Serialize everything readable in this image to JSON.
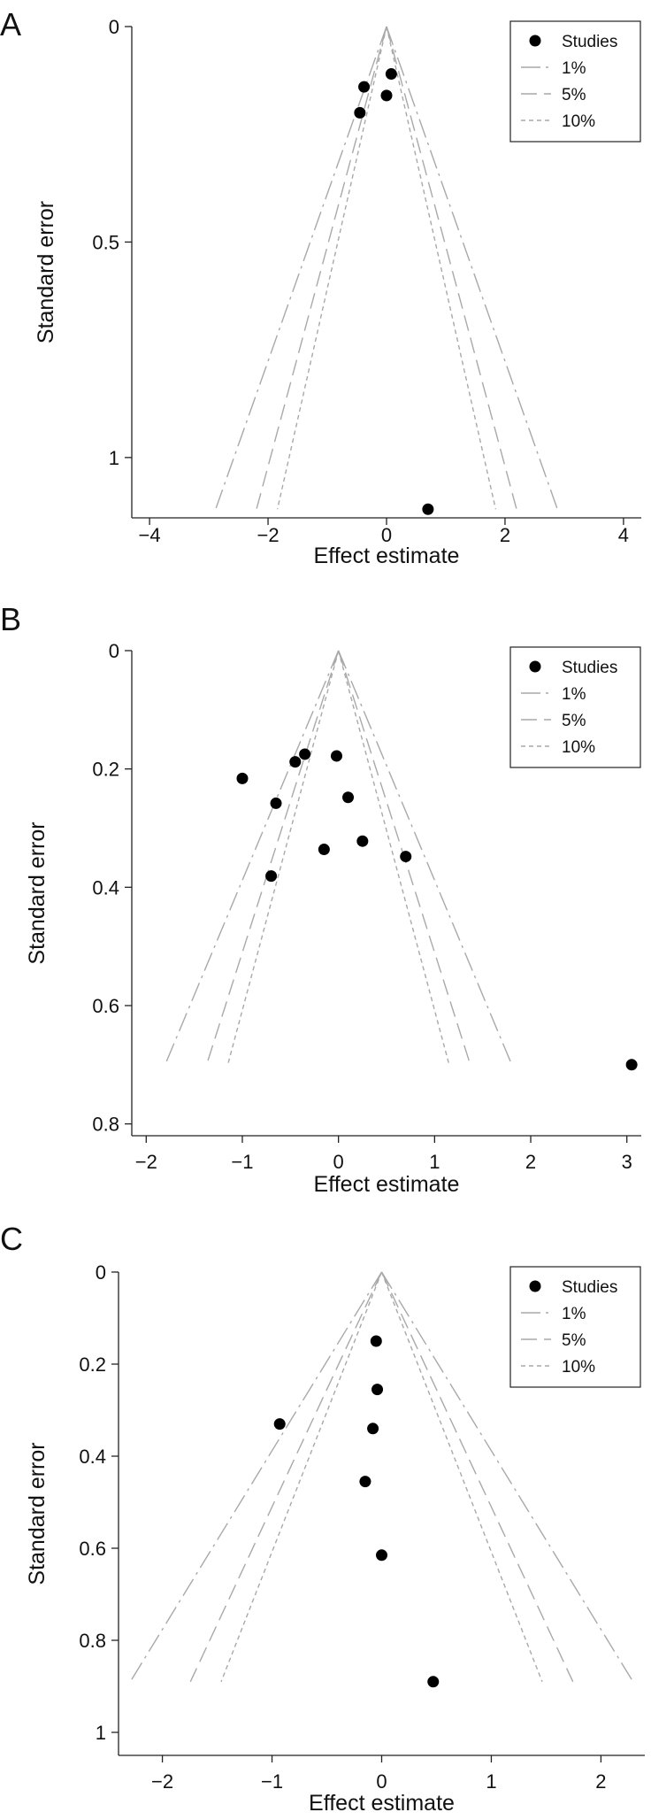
{
  "chart_data": [
    {
      "type": "scatter",
      "panel_label": "A",
      "xlabel": "Effect estimate",
      "ylabel": "Standard error",
      "xlim": [
        -4.3,
        4.3
      ],
      "ylim": [
        1.14,
        0
      ],
      "y_reversed": true,
      "x_ticks": [
        -4,
        -2,
        0,
        2,
        4
      ],
      "x_tick_labels": [
        "−4",
        "−2",
        "0",
        "2",
        "4"
      ],
      "y_ticks": [
        0,
        0.5,
        1
      ],
      "y_tick_labels": [
        "0",
        "0.5",
        "1"
      ],
      "funnel_center": 0,
      "funnel_se_max": 1.12,
      "legend": {
        "position": "top-right",
        "entries": [
          {
            "label": "Studies",
            "kind": "point"
          },
          {
            "label": "1%",
            "kind": "line",
            "z": 2.576
          },
          {
            "label": "5%",
            "kind": "line",
            "z": 1.96
          },
          {
            "label": "10%",
            "kind": "line",
            "z": 1.645
          }
        ]
      },
      "points": [
        {
          "x": 0.08,
          "y": 0.11
        },
        {
          "x": -0.38,
          "y": 0.14
        },
        {
          "x": 0.0,
          "y": 0.16
        },
        {
          "x": -0.45,
          "y": 0.2
        },
        {
          "x": 0.7,
          "y": 1.12
        }
      ]
    },
    {
      "type": "scatter",
      "panel_label": "B",
      "xlabel": "Effect estimate",
      "ylabel": "Standard error",
      "xlim": [
        -2.15,
        3.15
      ],
      "ylim": [
        0.82,
        0
      ],
      "y_reversed": true,
      "x_ticks": [
        -2,
        -1,
        0,
        1,
        2,
        3
      ],
      "x_tick_labels": [
        "−2",
        "−1",
        "0",
        "1",
        "2",
        "3"
      ],
      "y_ticks": [
        0,
        0.2,
        0.4,
        0.6,
        0.8
      ],
      "y_tick_labels": [
        "0",
        "0.2",
        "0.4",
        "0.6",
        "0.8"
      ],
      "funnel_center": 0,
      "funnel_se_max": 0.7,
      "legend": {
        "position": "top-right",
        "entries": [
          {
            "label": "Studies",
            "kind": "point"
          },
          {
            "label": "1%",
            "kind": "line",
            "z": 2.576
          },
          {
            "label": "5%",
            "kind": "line",
            "z": 1.96
          },
          {
            "label": "10%",
            "kind": "line",
            "z": 1.645
          }
        ]
      },
      "points": [
        {
          "x": -0.35,
          "y": 0.175
        },
        {
          "x": -0.45,
          "y": 0.188
        },
        {
          "x": -0.02,
          "y": 0.178
        },
        {
          "x": -1.0,
          "y": 0.216
        },
        {
          "x": 0.1,
          "y": 0.248
        },
        {
          "x": -0.65,
          "y": 0.258
        },
        {
          "x": 0.25,
          "y": 0.322
        },
        {
          "x": -0.15,
          "y": 0.336
        },
        {
          "x": 0.7,
          "y": 0.348
        },
        {
          "x": -0.7,
          "y": 0.381
        },
        {
          "x": 3.05,
          "y": 0.7
        }
      ]
    },
    {
      "type": "scatter",
      "panel_label": "C",
      "xlabel": "Effect estimate",
      "ylabel": "Standard error",
      "xlim": [
        -2.4,
        2.4
      ],
      "ylim": [
        1.05,
        0
      ],
      "y_reversed": true,
      "x_ticks": [
        -2,
        -1,
        0,
        1,
        2
      ],
      "x_tick_labels": [
        "−2",
        "−1",
        "0",
        "1",
        "2"
      ],
      "y_ticks": [
        0,
        0.2,
        0.4,
        0.6,
        0.8,
        1
      ],
      "y_tick_labels": [
        "0",
        "0.2",
        "0.4",
        "0.6",
        "0.8",
        "1"
      ],
      "funnel_center": 0,
      "funnel_se_max": 0.89,
      "legend": {
        "position": "top-right",
        "entries": [
          {
            "label": "Studies",
            "kind": "point"
          },
          {
            "label": "1%",
            "kind": "line",
            "z": 2.576
          },
          {
            "label": "5%",
            "kind": "line",
            "z": 1.96
          },
          {
            "label": "10%",
            "kind": "line",
            "z": 1.645
          }
        ]
      },
      "points": [
        {
          "x": -0.05,
          "y": 0.15
        },
        {
          "x": -0.04,
          "y": 0.255
        },
        {
          "x": -0.93,
          "y": 0.33
        },
        {
          "x": -0.08,
          "y": 0.34
        },
        {
          "x": -0.15,
          "y": 0.455
        },
        {
          "x": 0.0,
          "y": 0.615
        },
        {
          "x": 0.47,
          "y": 0.89
        }
      ]
    }
  ]
}
